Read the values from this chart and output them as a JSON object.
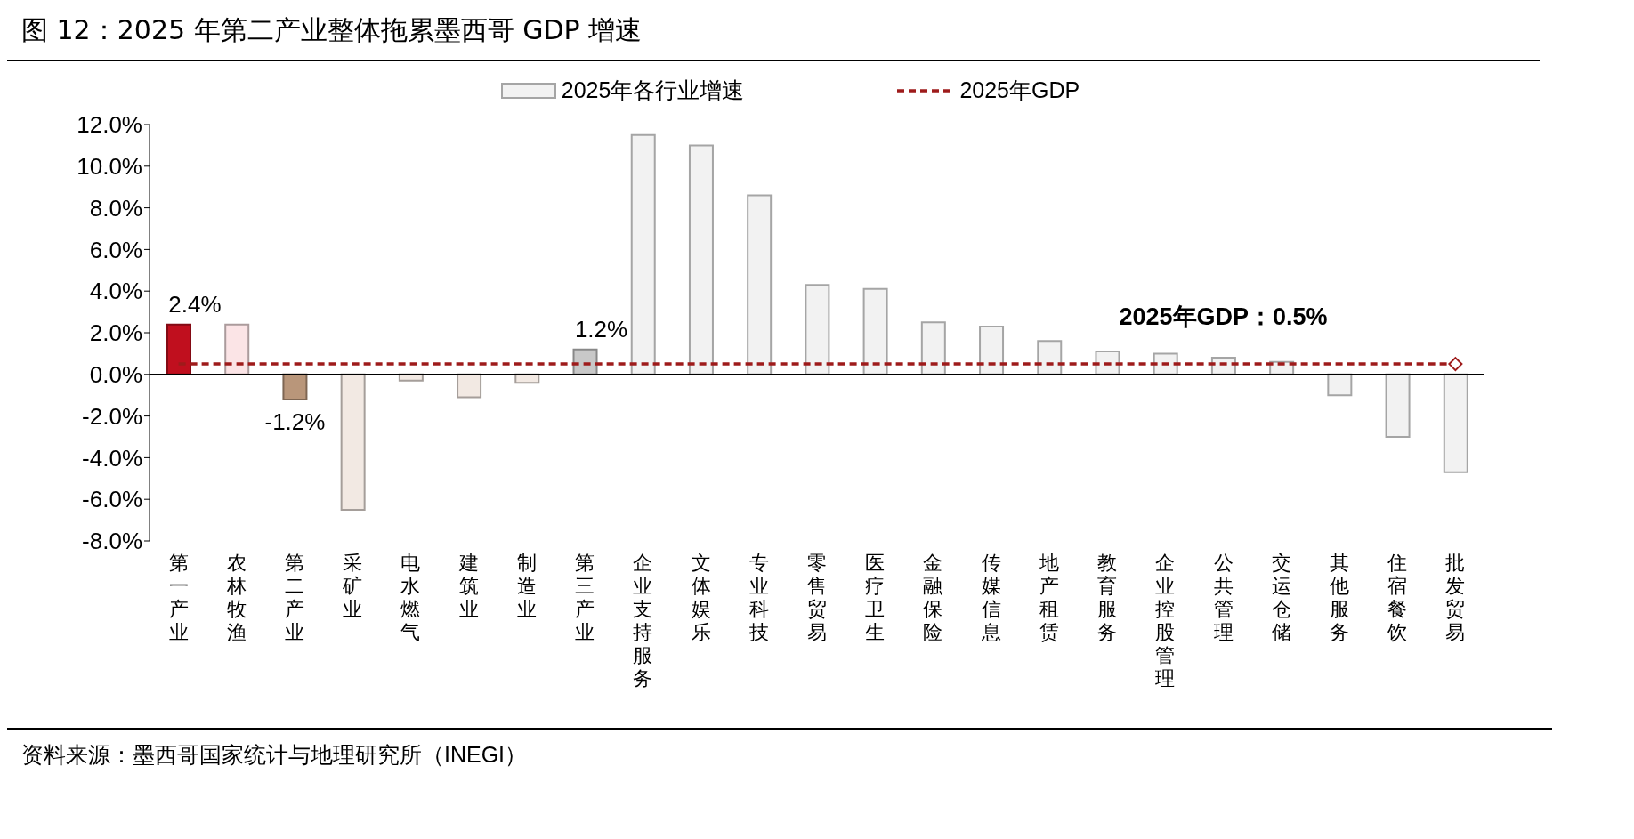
{
  "chart_data": {
    "type": "bar",
    "title": "图 12：2025 年第二产业整体拖累墨西哥 GDP 增速",
    "categories": [
      "第一产业",
      "农林牧渔",
      "第二产业",
      "采矿业",
      "电水燃气",
      "建筑业",
      "制造业",
      "第三产业",
      "企业支持服务",
      "文体娱乐",
      "专业科技",
      "零售贸易",
      "医疗卫生",
      "金融保险",
      "传媒信息",
      "地产租赁",
      "教育服务",
      "企业控股管理",
      "公共管理",
      "交运仓储",
      "其他服务",
      "住宿餐饮",
      "批发贸易"
    ],
    "series": [
      {
        "name": "2025年各行业增速",
        "color": "#f2f2f2",
        "colors": [
          "#c00f1e",
          "#fbe4e6",
          "#b9967a",
          "#f2e9e3",
          "#f2e9e3",
          "#f2e9e3",
          "#f2e9e3",
          "#c8c8c8",
          "#f2f2f2",
          "#f2f2f2",
          "#f2f2f2",
          "#f2f2f2",
          "#f2f2f2",
          "#f2f2f2",
          "#f2f2f2",
          "#f2f2f2",
          "#f2f2f2",
          "#f2f2f2",
          "#f2f2f2",
          "#f2f2f2",
          "#f2f2f2",
          "#f2f2f2",
          "#f2f2f2"
        ],
        "values": [
          2.4,
          2.4,
          -1.2,
          -6.5,
          -0.3,
          -1.1,
          -0.4,
          1.2,
          11.5,
          11.0,
          8.6,
          4.3,
          4.1,
          2.5,
          2.3,
          1.6,
          1.1,
          1.0,
          0.8,
          0.6,
          -1.0,
          -3.0,
          -4.7
        ],
        "value_labels": [
          "2.4%",
          null,
          "-1.2%",
          null,
          null,
          null,
          null,
          "1.2%",
          null,
          null,
          null,
          null,
          null,
          null,
          null,
          null,
          null,
          null,
          null,
          null,
          null,
          null,
          null
        ]
      },
      {
        "name": "2025年GDP",
        "type": "line",
        "color": "#9e1b1b",
        "line_style": "dashed",
        "values": [
          0.5,
          0.5,
          0.5,
          0.5,
          0.5,
          0.5,
          0.5,
          0.5,
          0.5,
          0.5,
          0.5,
          0.5,
          0.5,
          0.5,
          0.5,
          0.5,
          0.5,
          0.5,
          0.5,
          0.5,
          0.5,
          0.5,
          0.5
        ]
      }
    ],
    "ylim": [
      -8,
      12
    ],
    "yticks": [
      {
        "value": -8,
        "label": "-8.0%"
      },
      {
        "value": -6,
        "label": "-6.0%"
      },
      {
        "value": -4,
        "label": "-4.0%"
      },
      {
        "value": -2,
        "label": "-2.0%"
      },
      {
        "value": 0,
        "label": "0.0%"
      },
      {
        "value": 2,
        "label": "2.0%"
      },
      {
        "value": 4,
        "label": "4.0%"
      },
      {
        "value": 6,
        "label": "6.0%"
      },
      {
        "value": 8,
        "label": "8.0%"
      },
      {
        "value": 10,
        "label": "10.0%"
      },
      {
        "value": 12,
        "label": "12.0%"
      }
    ],
    "legend": "top",
    "annotations": [
      {
        "text": "2025年GDP：0.5%",
        "x": "公共管理",
        "y": 0.5
      },
      "资料来源：墨西哥国家统计与地理研究所（INEGI）"
    ]
  }
}
